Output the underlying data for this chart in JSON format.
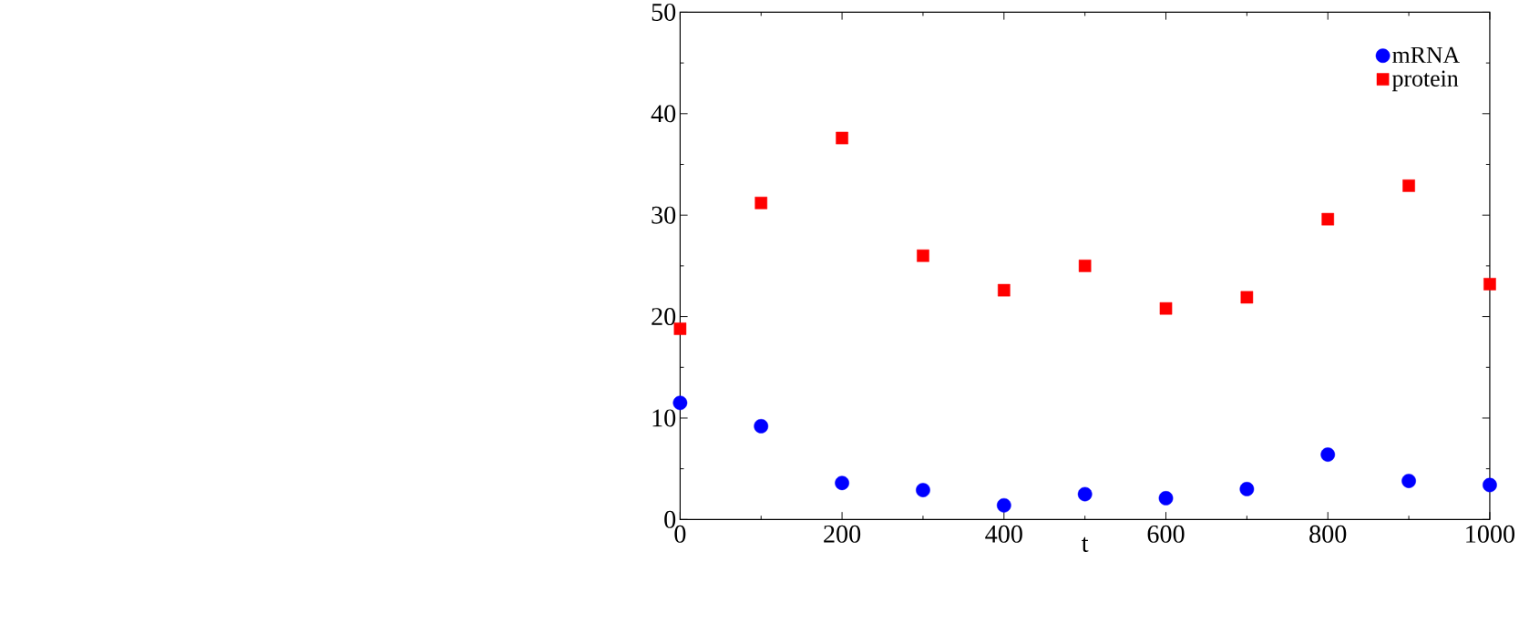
{
  "chart_data": {
    "type": "scatter",
    "xlabel": "t",
    "x": [
      0,
      100,
      200,
      300,
      400,
      500,
      600,
      700,
      800,
      900,
      1000
    ],
    "series": [
      {
        "name": "mRNA",
        "color": "#0000ff",
        "marker": "circle",
        "values": [
          11.5,
          9.2,
          3.6,
          2.9,
          1.4,
          2.5,
          2.1,
          3.0,
          6.4,
          3.8,
          3.4
        ]
      },
      {
        "name": "protein",
        "color": "#ff0000",
        "marker": "square",
        "values": [
          18.8,
          31.2,
          37.6,
          26.0,
          22.6,
          25.0,
          20.8,
          21.9,
          29.6,
          32.9,
          23.2
        ]
      }
    ],
    "xlim": [
      0,
      1000
    ],
    "ylim": [
      0,
      50
    ],
    "xticks": [
      0,
      200,
      400,
      600,
      800,
      1000
    ],
    "yticks": [
      0,
      10,
      20,
      30,
      40,
      50
    ],
    "grid": false,
    "legend": "top right"
  }
}
